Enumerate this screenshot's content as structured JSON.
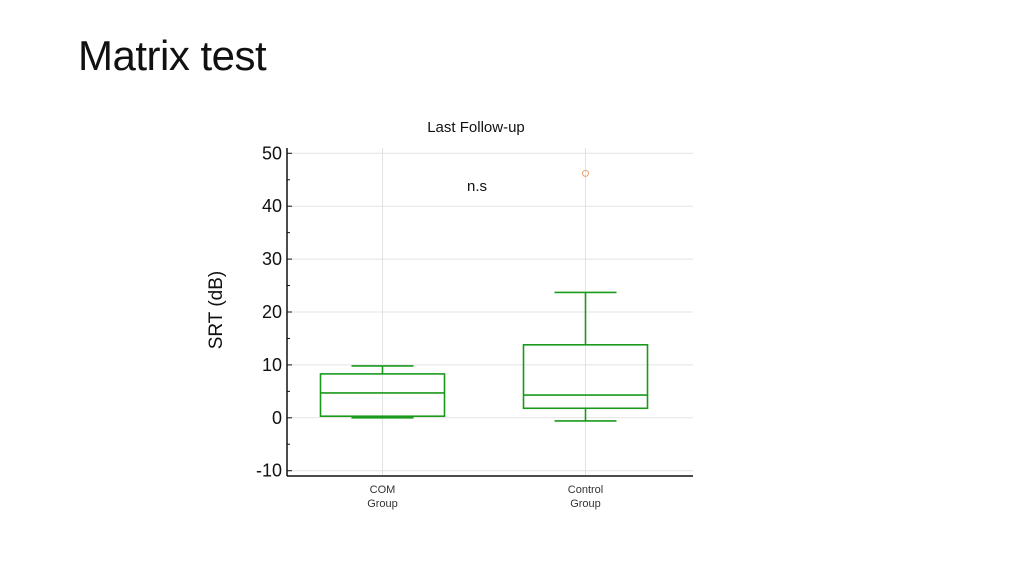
{
  "slide": {
    "title": "Matrix test"
  },
  "chart_data": {
    "type": "box",
    "title": "Last Follow-up",
    "xlabel": "",
    "ylabel": "SRT (dB)",
    "ylim": [
      -11,
      51
    ],
    "yticks": [
      -10,
      0,
      10,
      20,
      30,
      40,
      50
    ],
    "grid": true,
    "annotation": "n.s",
    "categories": [
      [
        "COM",
        "Group"
      ],
      [
        "Control",
        "Group"
      ]
    ],
    "series": [
      {
        "min": 0.0,
        "q1": 0.3,
        "median": 4.7,
        "q3": 8.3,
        "max": 9.8,
        "outliers": []
      },
      {
        "min": -0.6,
        "q1": 1.8,
        "median": 4.3,
        "q3": 13.8,
        "max": 23.7,
        "outliers": [
          46.2
        ]
      }
    ],
    "colors": {
      "box": "#1a9a1a",
      "outlier": "#e8a070",
      "grid": "#e3e3e3",
      "axis": "#111111"
    }
  }
}
